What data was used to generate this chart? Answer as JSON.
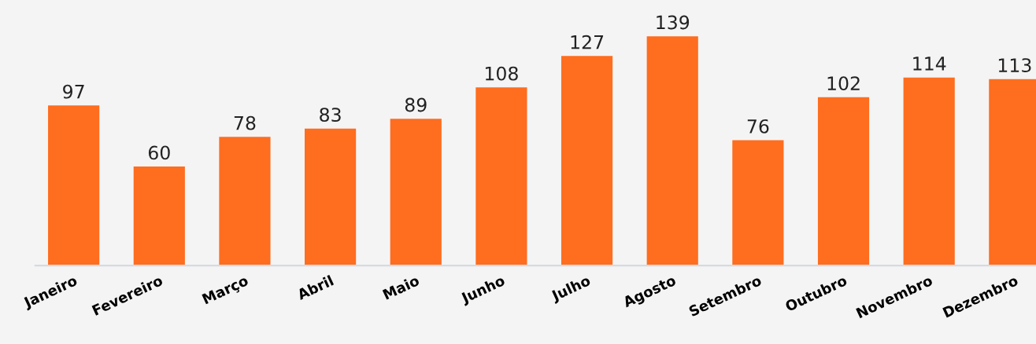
{
  "chart_data": {
    "type": "bar",
    "categories": [
      "Janeiro",
      "Fevereiro",
      "Março",
      "Abril",
      "Maio",
      "Junho",
      "Julho",
      "Agosto",
      "Setembro",
      "Outubro",
      "Novembro",
      "Dezembro"
    ],
    "values": [
      97,
      60,
      78,
      83,
      89,
      108,
      127,
      139,
      76,
      102,
      114,
      113
    ],
    "color": "#ff6d1f",
    "data_labels": true,
    "grid": false,
    "legend": false
  }
}
